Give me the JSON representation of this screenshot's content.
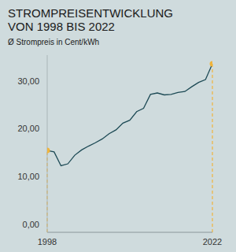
{
  "chart_data": {
    "type": "line",
    "title": "STROMPREISENTWICKLUNG\nVON 1998 BIS 2022",
    "subtitle": "Ø Strompreis in Cent/kWh",
    "x": [
      1998,
      1999,
      2000,
      2001,
      2002,
      2003,
      2004,
      2005,
      2006,
      2007,
      2008,
      2009,
      2010,
      2011,
      2012,
      2013,
      2014,
      2015,
      2016,
      2017,
      2018,
      2019,
      2020,
      2021,
      2022
    ],
    "values": [
      17.1,
      16.8,
      13.9,
      14.3,
      16.1,
      17.2,
      18.0,
      18.7,
      19.5,
      20.6,
      21.4,
      22.8,
      23.4,
      25.2,
      25.9,
      28.8,
      29.1,
      28.7,
      28.8,
      29.2,
      29.4,
      30.4,
      31.3,
      31.9,
      35.2
    ],
    "color": "#1d4a55",
    "marker": "endpoints",
    "xlim": [
      1998,
      2022
    ],
    "xticks": [
      1998,
      2022
    ],
    "ylim": [
      0,
      37
    ],
    "yticks": [
      {
        "value": 0,
        "label": "0,00"
      },
      {
        "value": 10,
        "label": "10,00"
      },
      {
        "value": 20,
        "label": "20,00"
      },
      {
        "value": 30,
        "label": "30,00"
      }
    ],
    "grid": false
  }
}
